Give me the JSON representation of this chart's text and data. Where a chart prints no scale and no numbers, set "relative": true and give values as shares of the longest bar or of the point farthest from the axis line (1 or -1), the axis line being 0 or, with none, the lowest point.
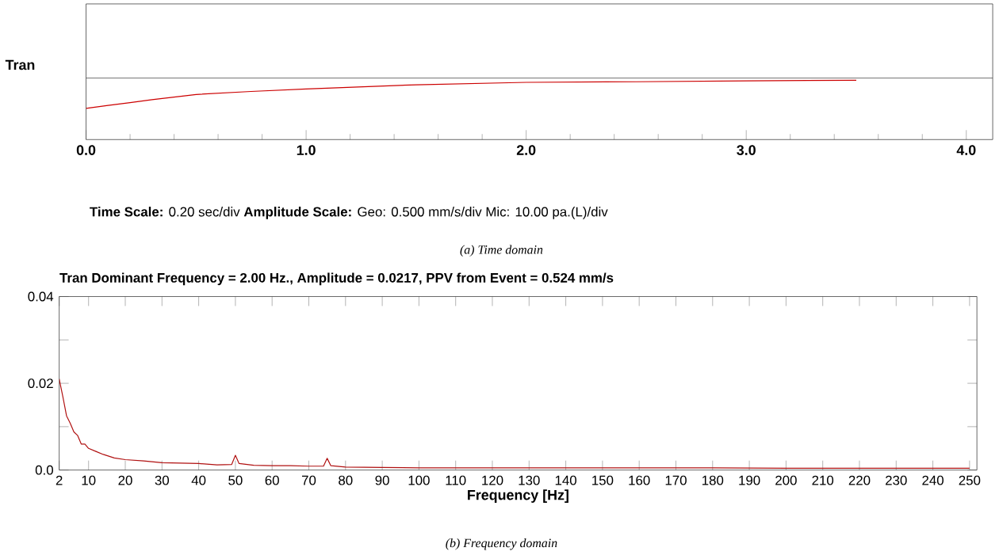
{
  "chart_data": [
    {
      "type": "line",
      "relative": true,
      "ylabel": "Tran",
      "color": "#cc0000",
      "x": [
        0,
        0.1,
        0.2,
        0.3,
        0.5,
        0.75,
        1.0,
        1.5,
        2.0,
        2.5,
        3.0,
        3.5
      ],
      "values": [
        -1,
        -0.9,
        -0.81,
        -0.71,
        -0.54,
        -0.44,
        -0.36,
        -0.22,
        -0.14,
        -0.12,
        -0.09,
        -0.07
      ],
      "xlim": [
        0,
        4.12
      ],
      "xticks": [
        {
          "value": 0,
          "label": "0.0"
        },
        {
          "value": 1,
          "label": "1.0"
        },
        {
          "value": 2,
          "label": "2.0"
        },
        {
          "value": 3,
          "label": "3.0"
        },
        {
          "value": 4,
          "label": "4.0"
        }
      ],
      "annotations": [
        "**Time Scale:** 0.20 sec/div   **Amplitude Scale:** Geo: 0.500 mm/s/div Mic: 10.00 pa.(L)/div",
        "(a) Time domain"
      ]
    },
    {
      "type": "line",
      "title": "Tran Dominant Frequency = 2.00 Hz., Amplitude = 0.0217,  PPV from Event = 0.524 mm/s",
      "xlabel": "Frequency [Hz]",
      "color": "#b01010",
      "x": [
        2,
        3,
        4,
        5,
        6,
        7,
        8,
        9,
        10,
        12,
        14,
        17,
        20,
        25,
        30,
        35,
        40,
        45,
        49,
        50,
        51,
        55,
        60,
        65,
        70,
        74,
        75,
        76,
        80,
        90,
        100,
        120,
        140,
        160,
        180,
        200,
        220,
        240,
        250
      ],
      "values": [
        0.021,
        0.0169,
        0.0125,
        0.0108,
        0.0088,
        0.008,
        0.006,
        0.006,
        0.005,
        0.0043,
        0.0036,
        0.0028,
        0.0024,
        0.0021,
        0.0017,
        0.0016,
        0.0015,
        0.0012,
        0.0013,
        0.0034,
        0.0015,
        0.0011,
        0.001,
        0.001,
        0.0009,
        0.0009,
        0.0027,
        0.001,
        0.0007,
        0.0006,
        0.0005,
        0.0005,
        0.0005,
        0.0005,
        0.0005,
        0.0004,
        0.0004,
        0.0004,
        0.0004
      ],
      "xlim": [
        2,
        252
      ],
      "ylim": [
        0,
        0.04
      ],
      "xticks": [
        2,
        10,
        20,
        30,
        40,
        50,
        60,
        70,
        80,
        90,
        100,
        110,
        120,
        130,
        140,
        150,
        160,
        170,
        180,
        190,
        200,
        210,
        220,
        230,
        240,
        250
      ],
      "yticks": [
        {
          "value": 0,
          "label": "0.0"
        },
        {
          "value": 0.01,
          "label": null
        },
        0.02,
        {
          "value": 0.03,
          "label": null
        },
        0.04
      ],
      "annotations": [
        "(b) Frequency domain"
      ]
    }
  ]
}
